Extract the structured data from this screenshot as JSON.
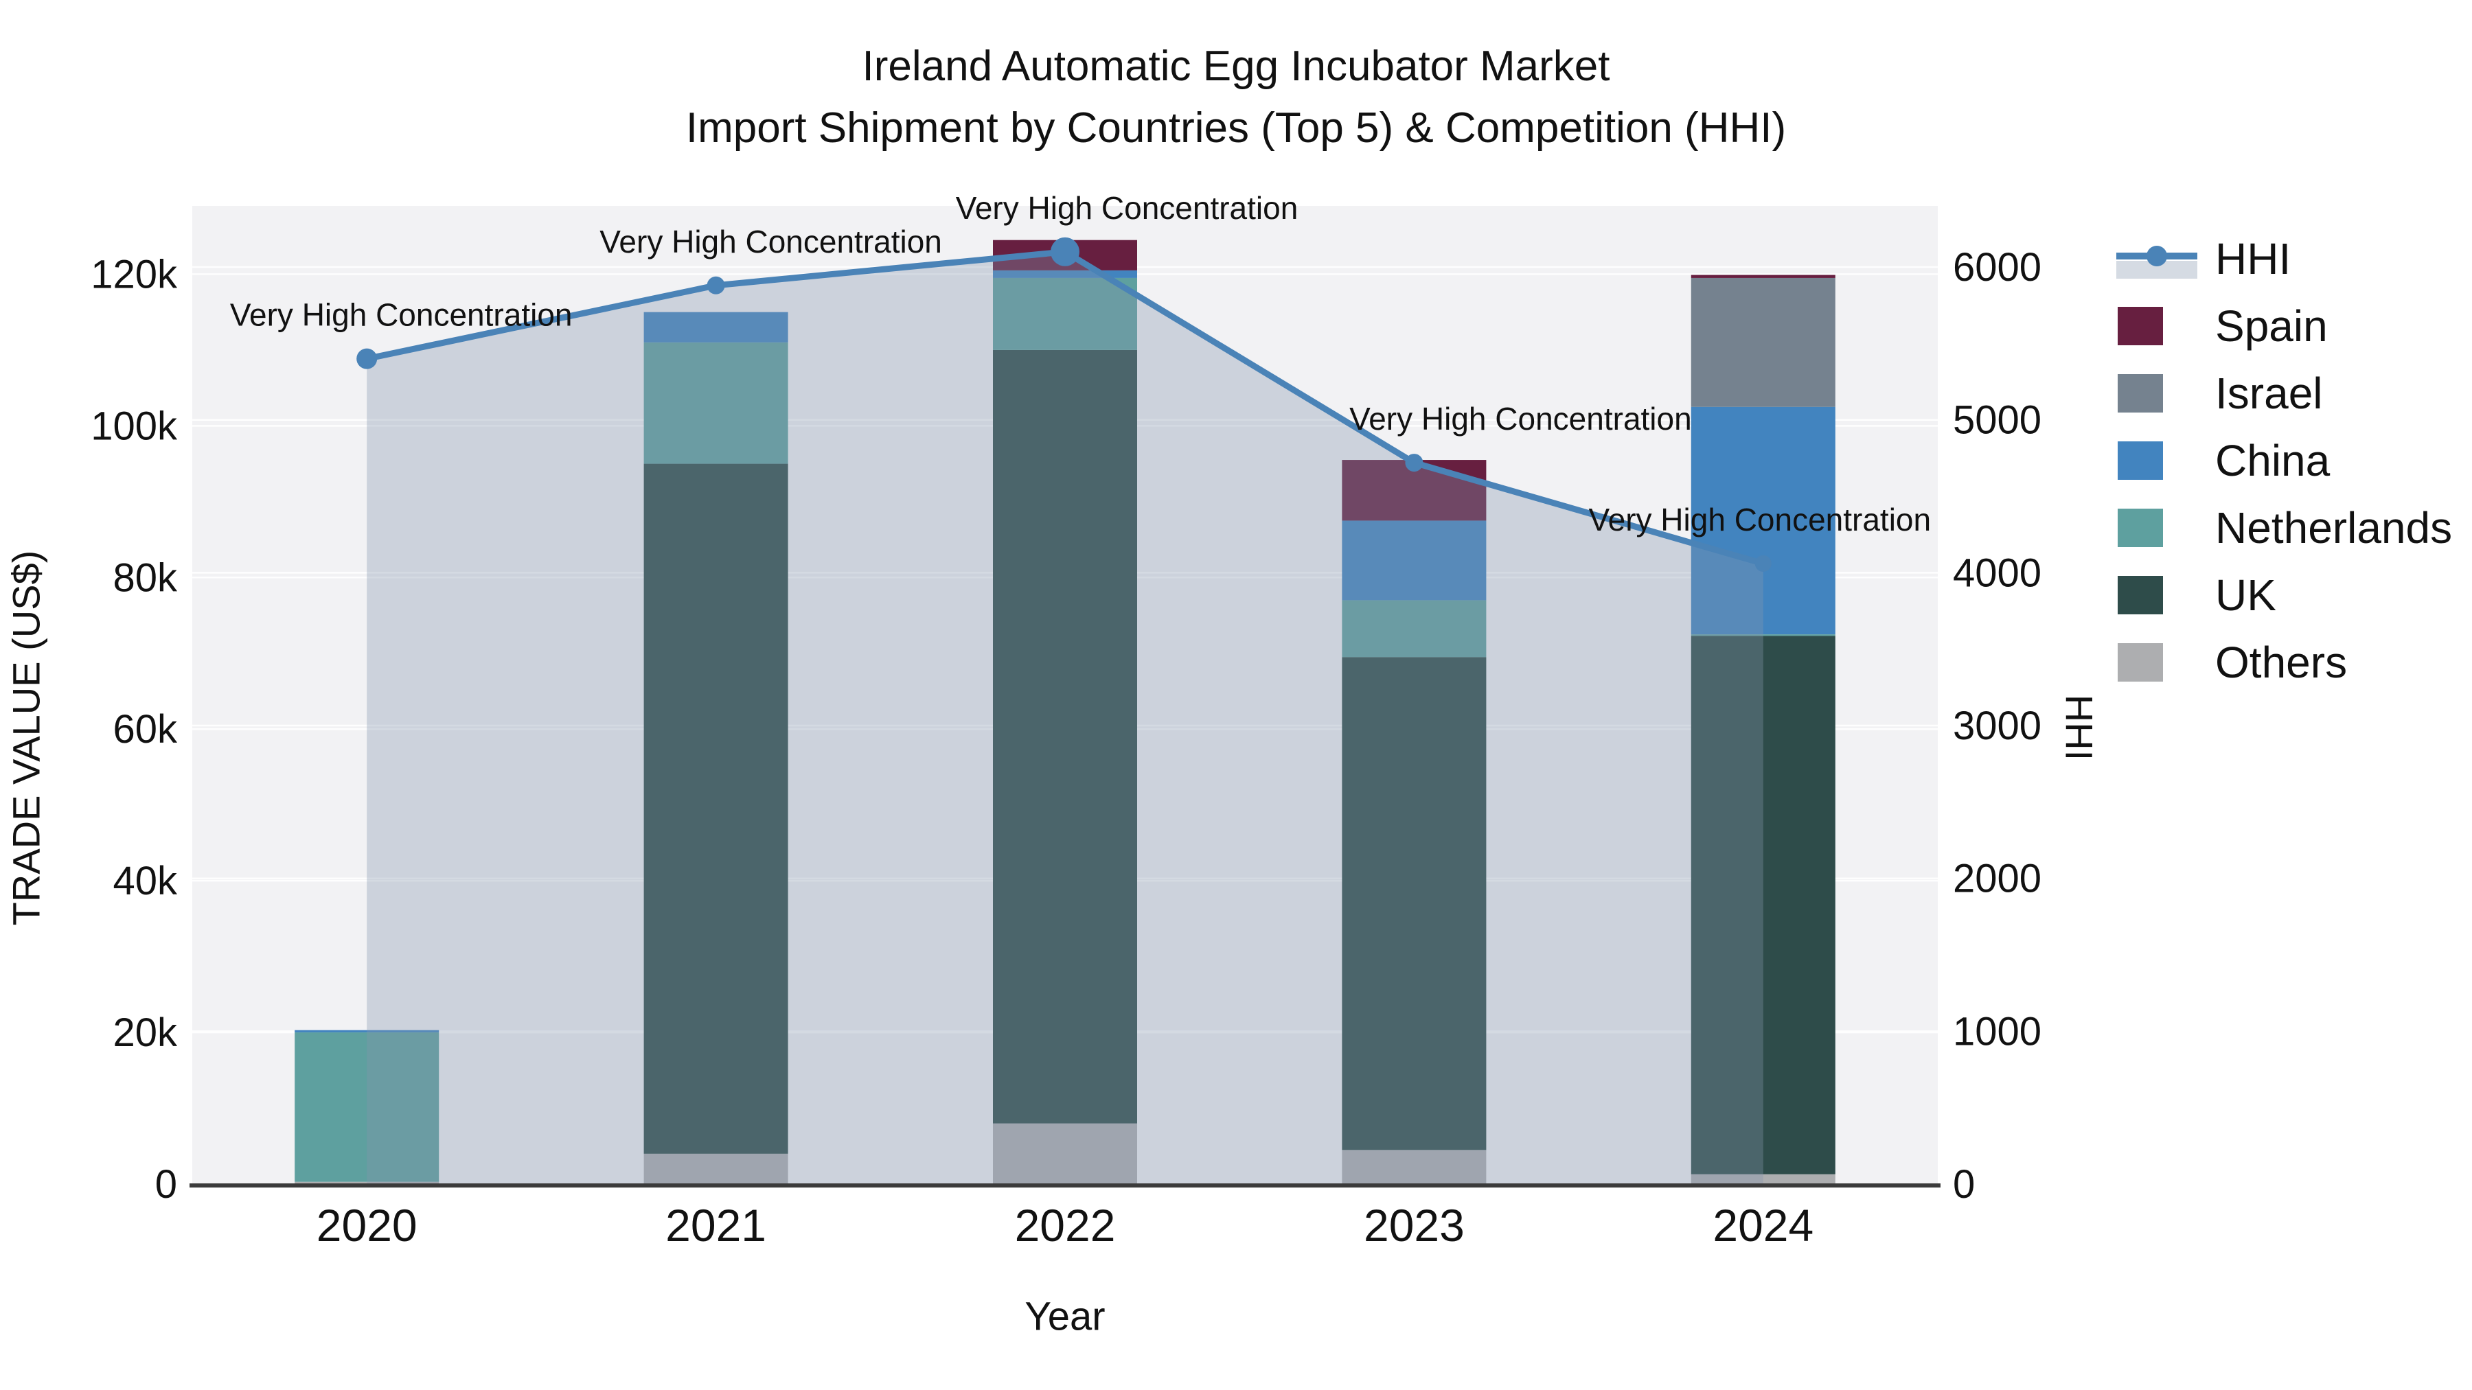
{
  "title": {
    "line1": "Ireland Automatic Egg Incubator Market",
    "line2": "Import Shipment by Countries (Top 5) & Competition (HHI)"
  },
  "axes": {
    "left": {
      "label": "TRADE VALUE (US$)",
      "tick_labels": [
        "0",
        "20k",
        "40k",
        "60k",
        "80k",
        "100k",
        "120k"
      ]
    },
    "right": {
      "label": "HHI",
      "tick_labels": [
        "0",
        "1000",
        "2000",
        "3000",
        "4000",
        "5000",
        "6000"
      ]
    },
    "x": {
      "label": "Year"
    }
  },
  "legend": {
    "items": [
      {
        "label": "HHI",
        "type": "line",
        "color": "#4a83b7"
      },
      {
        "label": "Spain",
        "type": "swatch",
        "color": "#671f40"
      },
      {
        "label": "Israel",
        "type": "swatch",
        "color": "#75828f"
      },
      {
        "label": "China",
        "type": "swatch",
        "color": "#4284bf"
      },
      {
        "label": "Netherlands",
        "type": "swatch",
        "color": "#5ea09f"
      },
      {
        "label": "UK",
        "type": "swatch",
        "color": "#2e4c4a"
      },
      {
        "label": "Others",
        "type": "swatch",
        "color": "#adaeb0"
      }
    ]
  },
  "annotations": [
    "Very High Concentration",
    "Very High Concentration",
    "Very High Concentration",
    "Very High Concentration",
    "Very High Concentration"
  ],
  "colors": {
    "plot_bg": "#f2f2f4",
    "grid": "#ffffff",
    "axis_line": "#3b3b3b",
    "text": "#111111",
    "hhi_line": "#4a83b7",
    "hhi_area": "#8496ad",
    "spain": "#671f40",
    "israel": "#75828f",
    "china": "#4284bf",
    "netherlands": "#5ea09f",
    "uk": "#2e4c4a",
    "others": "#adaeb0"
  },
  "chart_data": {
    "type": "bar+line",
    "title": "Ireland Automatic Egg Incubator Market — Import Shipment by Countries (Top 5) & Competition (HHI)",
    "categories": [
      "2020",
      "2021",
      "2022",
      "2023",
      "2024"
    ],
    "bar_unit": "US$ thousands (left axis)",
    "stack_order_bottom_to_top": [
      "Others",
      "UK",
      "Netherlands",
      "China",
      "Israel",
      "Spain"
    ],
    "series": [
      {
        "name": "Others",
        "values": [
          0.3,
          4.0,
          8.0,
          4.5,
          1.3
        ]
      },
      {
        "name": "UK",
        "values": [
          0,
          91.0,
          102.0,
          65.0,
          71.0
        ]
      },
      {
        "name": "Netherlands",
        "values": [
          19.7,
          16.0,
          9.5,
          7.5,
          0.2
        ]
      },
      {
        "name": "China",
        "values": [
          0.3,
          4.0,
          1.0,
          10.5,
          30.0
        ]
      },
      {
        "name": "Israel",
        "values": [
          0,
          0,
          0,
          0,
          17.0
        ]
      },
      {
        "name": "Spain",
        "values": [
          0,
          0,
          4.0,
          8.0,
          0.4
        ]
      }
    ],
    "bar_totals_thousands": [
      20.3,
      115.0,
      124.5,
      95.5,
      119.9
    ],
    "line_series": {
      "name": "HHI",
      "axis": "right",
      "values": [
        5400,
        5880,
        6100,
        4720,
        4060
      ]
    },
    "xlabel": "Year",
    "ylabel_left": "TRADE VALUE (US$)",
    "ylabel_right": "HHI",
    "left_tick_values_thousands": [
      0,
      20,
      40,
      60,
      80,
      100,
      120
    ],
    "right_tick_values": [
      0,
      1000,
      2000,
      3000,
      4000,
      5000,
      6000
    ],
    "ylim_left_thousands": [
      0,
      129
    ],
    "ylim_right": [
      0,
      6400
    ],
    "grid": true,
    "legend_position": "right"
  }
}
